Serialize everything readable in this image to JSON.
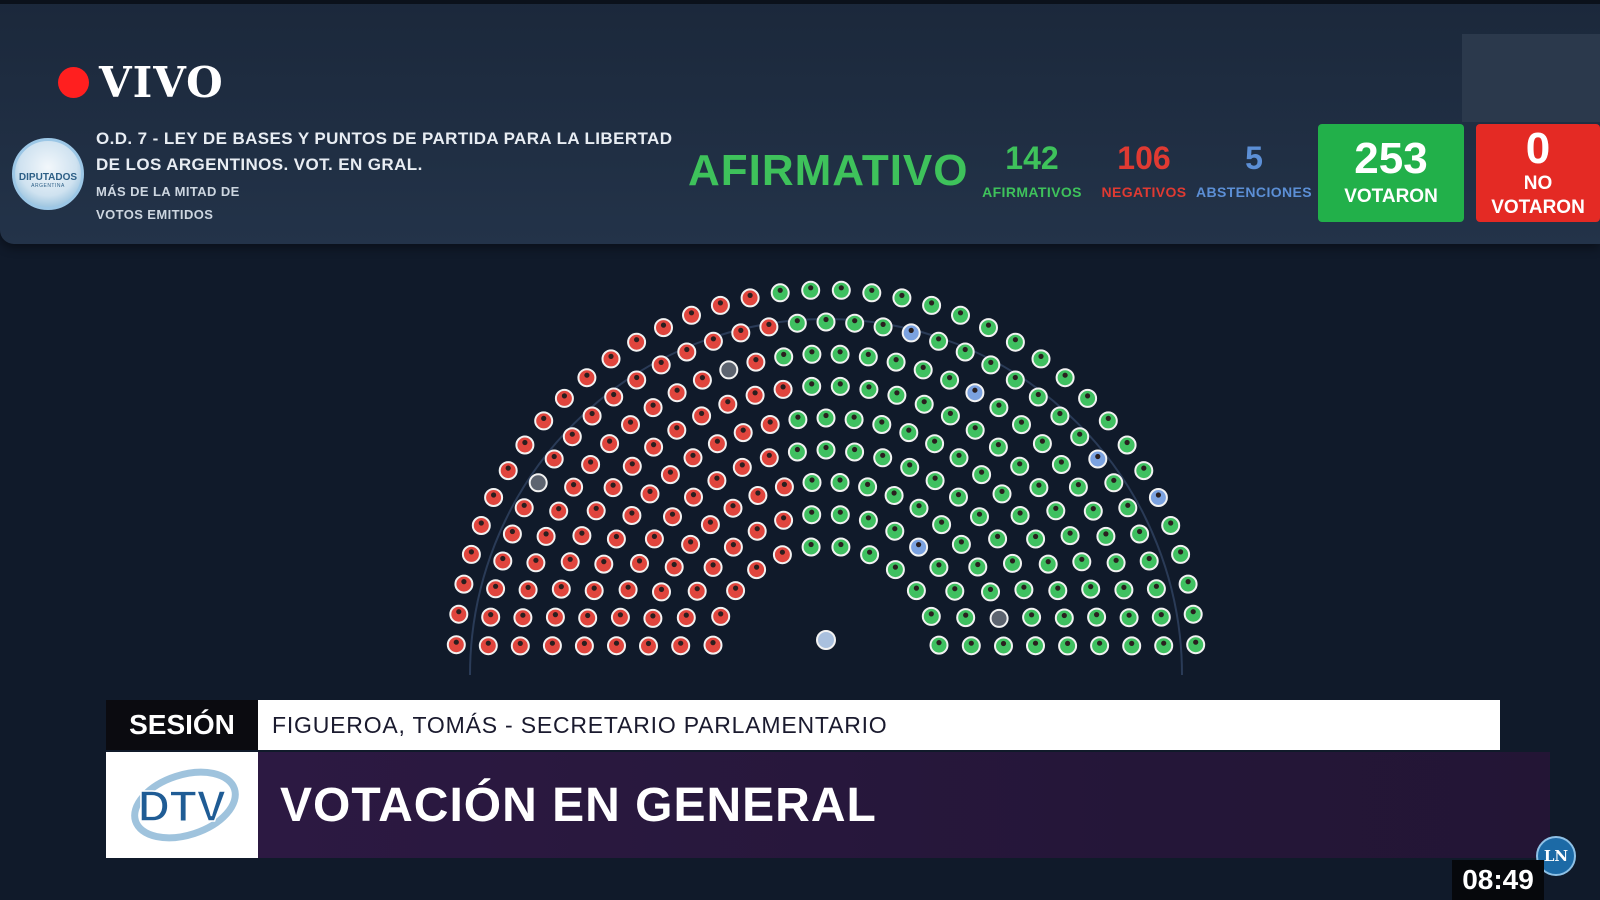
{
  "live": {
    "label": "VIVO"
  },
  "seal": {
    "text": "DIPUTADOS",
    "sub": "ARGENTINA"
  },
  "motion": {
    "title": "O.D. 7 - LEY DE BASES Y PUNTOS DE PARTIDA PARA LA LIBERTAD DE LOS ARGENTINOS. VOT. EN GRAL.",
    "rule_line1": "MÁS DE LA MITAD DE",
    "rule_line2": "VOTOS EMITIDOS"
  },
  "result": {
    "label": "AFIRMATIVO",
    "color": "#3ec25b"
  },
  "stats": {
    "affirmative": {
      "value": "142",
      "label": "AFIRMATIVOS",
      "color": "#3ec25b"
    },
    "negative": {
      "value": "106",
      "label": "NEGATIVOS",
      "color": "#e03a32"
    },
    "abstention": {
      "value": "5",
      "label": "ABSTENCIONES",
      "color": "#5c8fd6"
    }
  },
  "totals": {
    "voted": {
      "value": "253",
      "label": "VOTARON",
      "color": "#22b04a"
    },
    "not_voted": {
      "value": "0",
      "label_line1": "NO",
      "label_line2": "VOTARON",
      "color": "#e42a24"
    }
  },
  "chamber": {
    "affirmative": 142,
    "negative": 106,
    "abstention": 5,
    "absent": 3,
    "colors": {
      "affirmative": "#3fc060",
      "negative": "#e0453d",
      "abstention": "#7ba2e0",
      "absent": "#5d6470",
      "president": "#a9c0de"
    }
  },
  "session": {
    "tag": "SESIÓN",
    "speaker": "FIGUEROA, TOMÁS - SECRETARIO PARLAMENTARIO"
  },
  "channel": {
    "logo": "DTV"
  },
  "headline": "VOTACIÓN EN GENERAL",
  "corner_badge": "LN",
  "clock": "08:49"
}
